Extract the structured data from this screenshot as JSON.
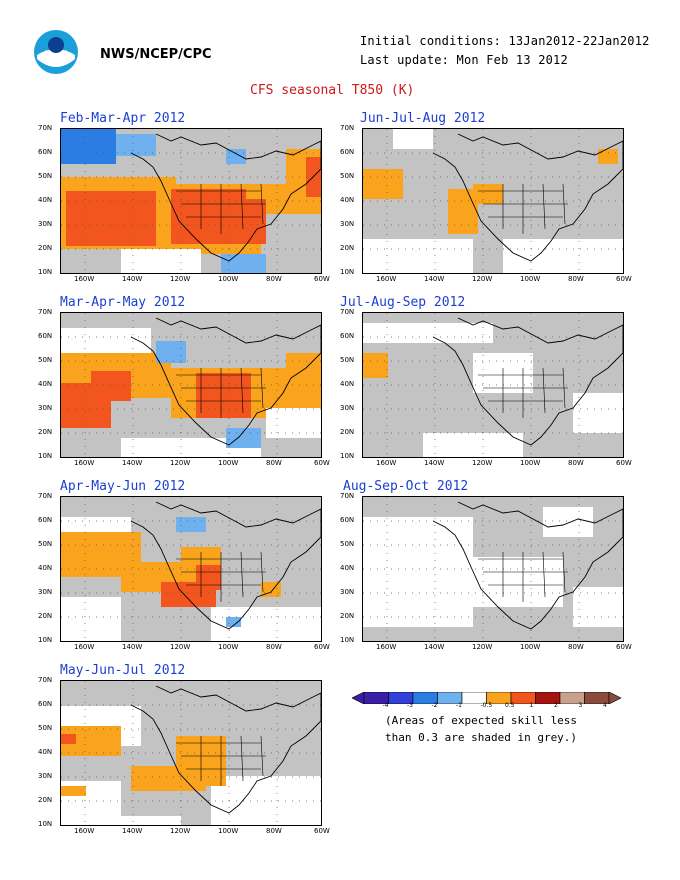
{
  "header": {
    "org": "NWS/NCEP/CPC",
    "init": "Initial conditions: 13Jan2012-22Jan2012",
    "update": "Last update: Mon Feb 13 2012",
    "title": "CFS seasonal T850 (K)"
  },
  "axis": {
    "lat_labels": [
      "70N",
      "60N",
      "50N",
      "40N",
      "30N",
      "20N",
      "10N"
    ],
    "lon_labels": [
      "160W",
      "140W",
      "120W",
      "100W",
      "80W",
      "60W"
    ]
  },
  "colors": {
    "grey": "#c3c3c3",
    "orange": "#f9a41c",
    "red": "#f2561e",
    "lightblue": "#6fb0ee",
    "blue": "#2b7de3",
    "land_line": "#000000"
  },
  "panels": [
    {
      "key": "fma",
      "title": "Feb-Mar-Apr 2012"
    },
    {
      "key": "jja",
      "title": "Jun-Jul-Aug 2012"
    },
    {
      "key": "mam",
      "title": "Mar-Apr-May 2012"
    },
    {
      "key": "jas",
      "title": "Jul-Aug-Sep 2012"
    },
    {
      "key": "amj",
      "title": "Apr-May-Jun 2012"
    },
    {
      "key": "aso",
      "title": "Aug-Sep-Oct 2012"
    },
    {
      "key": "mjj",
      "title": "May-Jun-Jul 2012"
    }
  ],
  "colorbar": {
    "labels": [
      "-4",
      "-3",
      "-2",
      "-1",
      "-0.5",
      "0.5",
      "1",
      "2",
      "3",
      "4"
    ],
    "colors": [
      "#3a1fa6",
      "#3040d8",
      "#2b7de3",
      "#6fb0ee",
      "#ffffff",
      "#f9a41c",
      "#f2561e",
      "#a5150f",
      "#c9a08e",
      "#8a4a3c"
    ],
    "note_line1": "(Areas of expected skill less",
    "note_line2": "than 0.3 are shaded in grey.)"
  }
}
